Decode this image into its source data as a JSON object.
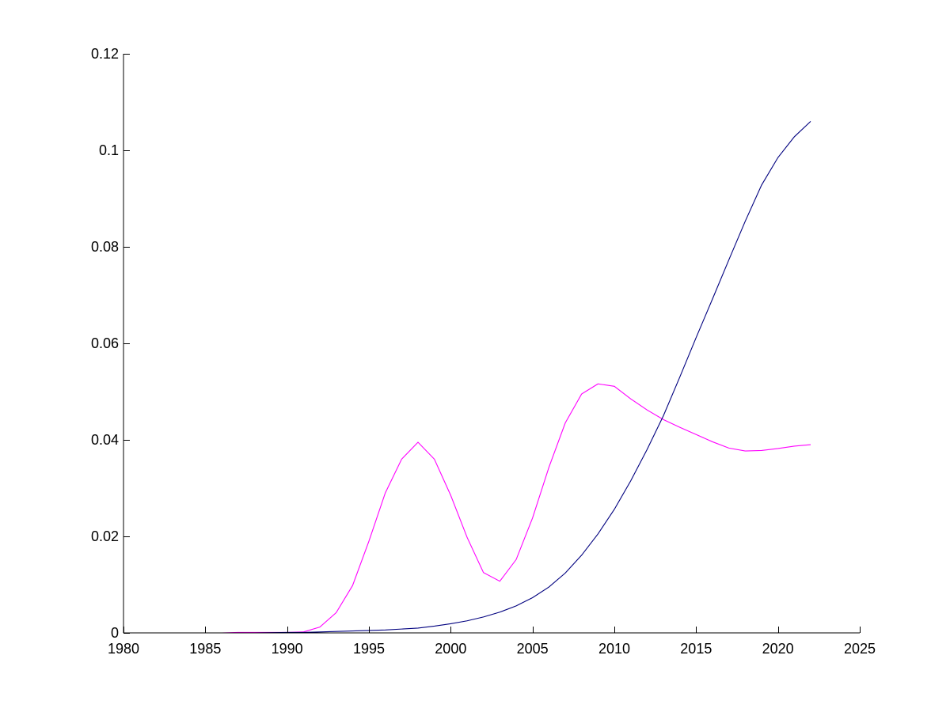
{
  "chart_data": {
    "type": "line",
    "title": "",
    "xlabel": "",
    "ylabel": "",
    "xlim": [
      1980,
      2025
    ],
    "ylim": [
      0,
      0.12
    ],
    "grid": false,
    "x_ticks": [
      1980,
      1985,
      1990,
      1995,
      2000,
      2005,
      2010,
      2015,
      2020,
      2025
    ],
    "y_ticks": [
      0,
      0.02,
      0.04,
      0.06,
      0.08,
      0.1,
      0.12
    ],
    "x_tick_labels": [
      "1980",
      "1985",
      "1990",
      "1995",
      "2000",
      "2005",
      "2010",
      "2015",
      "2020",
      "2025"
    ],
    "y_tick_labels": [
      "0",
      "0.02",
      "0.04",
      "0.06",
      "0.08",
      "0.1",
      "0.12"
    ],
    "series": [
      {
        "color": "#ff00ff",
        "x": [
          1980,
          1981,
          1982,
          1983,
          1984,
          1985,
          1986,
          1987,
          1988,
          1989,
          1990,
          1991,
          1992,
          1993,
          1994,
          1995,
          1996,
          1997,
          1998,
          1999,
          2000,
          2001,
          2002,
          2003,
          2004,
          2005,
          2006,
          2007,
          2008,
          2009,
          2010,
          2011,
          2012,
          2013,
          2014,
          2015,
          2016,
          2017,
          2018,
          2019,
          2020,
          2021,
          2022
        ],
        "y": [
          0,
          0,
          0,
          0,
          0,
          0,
          0,
          0.0001,
          0.0001,
          0.0001,
          0.0001,
          0.0002,
          0.0012,
          0.0042,
          0.0098,
          0.019,
          0.029,
          0.036,
          0.0395,
          0.036,
          0.0285,
          0.0198,
          0.0125,
          0.0107,
          0.0152,
          0.0238,
          0.0343,
          0.0435,
          0.0495,
          0.0516,
          0.0511,
          0.0485,
          0.0462,
          0.0442,
          0.0426,
          0.0411,
          0.0396,
          0.0383,
          0.0377,
          0.0378,
          0.0382,
          0.0387,
          0.039
        ]
      },
      {
        "color": "#00007f",
        "x": [
          1980,
          1982,
          1984,
          1986,
          1988,
          1990,
          1991,
          1992,
          1993,
          1994,
          1995,
          1996,
          1997,
          1998,
          1999,
          2000,
          2001,
          2002,
          2003,
          2004,
          2005,
          2006,
          2007,
          2008,
          2009,
          2010,
          2011,
          2012,
          2013,
          2014,
          2015,
          2016,
          2017,
          2018,
          2019,
          2020,
          2021,
          2022
        ],
        "y": [
          0,
          0,
          0,
          0,
          0,
          0.0001,
          0.0001,
          0.0002,
          0.0003,
          0.0004,
          0.0005,
          0.0006,
          0.0008,
          0.001,
          0.0014,
          0.0019,
          0.0025,
          0.0033,
          0.0043,
          0.0056,
          0.0073,
          0.0095,
          0.0124,
          0.0161,
          0.0205,
          0.0256,
          0.0315,
          0.038,
          0.045,
          0.053,
          0.0612,
          0.0692,
          0.0773,
          0.0853,
          0.0928,
          0.0985,
          0.1028,
          0.106
        ]
      }
    ]
  }
}
